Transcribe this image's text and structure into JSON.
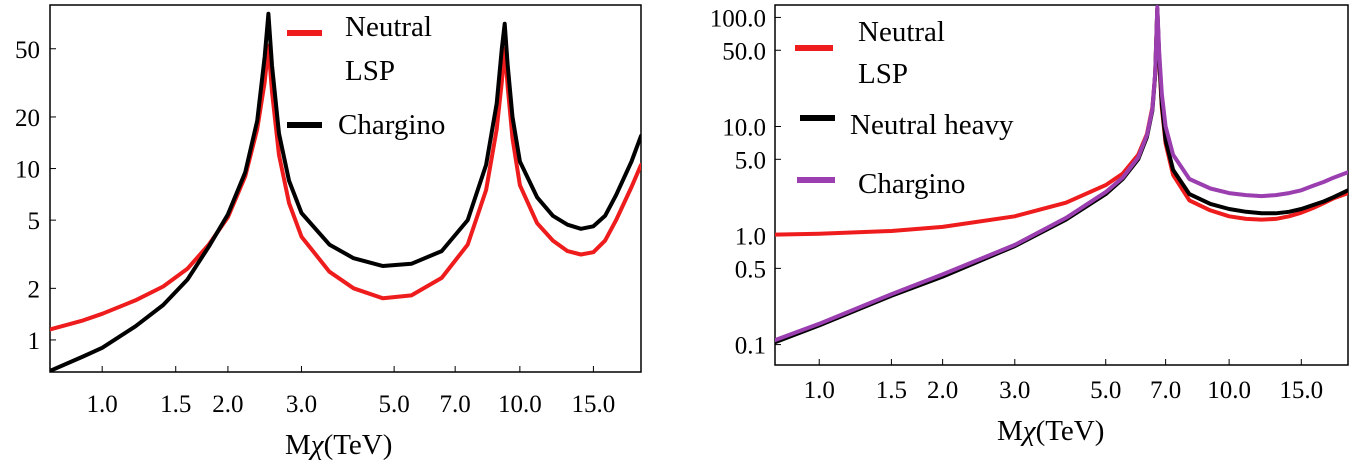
{
  "chart_data": [
    {
      "type": "line",
      "xscale": "log",
      "yscale": "log",
      "xlabel_main": "M",
      "xlabel_sym": "χ",
      "xlabel_unit": "(TeV)",
      "xlim": [
        0.75,
        19.5
      ],
      "ylim": [
        0.65,
        90
      ],
      "xticks": [
        1.0,
        1.5,
        2.0,
        3.0,
        5.0,
        7.0,
        10.0,
        15.0
      ],
      "xtick_labels": [
        "1.0",
        "1.5",
        "2.0",
        "3.0",
        "5.0",
        "7.0",
        "10.0",
        "15.0"
      ],
      "yticks": [
        1,
        2,
        5,
        10,
        20,
        50
      ],
      "ytick_labels": [
        "1",
        "2",
        "5",
        "10",
        "20",
        "50"
      ],
      "legend": [
        {
          "label": "Neutral",
          "label2": "LSP",
          "color": "#ee1c1c"
        },
        {
          "label": "Chargino",
          "label2": "",
          "color": "#000000"
        }
      ],
      "series": [
        {
          "name": "Neutral LSP",
          "color": "#ee1c1c",
          "x": [
            0.75,
            0.9,
            1.0,
            1.2,
            1.4,
            1.6,
            1.8,
            2.0,
            2.2,
            2.35,
            2.45,
            2.5,
            2.55,
            2.65,
            2.8,
            3.0,
            3.5,
            4.0,
            4.7,
            5.5,
            6.5,
            7.5,
            8.3,
            8.8,
            9.05,
            9.2,
            9.35,
            9.6,
            10.0,
            11.0,
            12.0,
            13.0,
            14.0,
            15.0,
            16.0,
            17.0,
            18.5,
            19.5
          ],
          "y": [
            1.15,
            1.3,
            1.42,
            1.7,
            2.05,
            2.6,
            3.6,
            5.2,
            9.0,
            17.0,
            32.0,
            52.0,
            28.0,
            12.0,
            6.3,
            4.0,
            2.5,
            2.0,
            1.75,
            1.82,
            2.3,
            3.6,
            7.5,
            17.0,
            32.0,
            50.0,
            30.0,
            15.0,
            8.0,
            4.8,
            3.8,
            3.3,
            3.15,
            3.25,
            3.8,
            5.0,
            7.8,
            10.5
          ]
        },
        {
          "name": "Chargino",
          "color": "#000000",
          "x": [
            0.75,
            0.9,
            1.0,
            1.2,
            1.4,
            1.6,
            1.8,
            2.0,
            2.2,
            2.35,
            2.45,
            2.5,
            2.55,
            2.65,
            2.8,
            3.0,
            3.5,
            4.0,
            4.7,
            5.5,
            6.5,
            7.5,
            8.3,
            8.8,
            9.05,
            9.2,
            9.35,
            9.6,
            10.0,
            11.0,
            12.0,
            13.0,
            14.0,
            15.0,
            16.0,
            17.0,
            18.5,
            19.5
          ],
          "y": [
            0.66,
            0.8,
            0.9,
            1.2,
            1.6,
            2.25,
            3.5,
            5.4,
            9.5,
            19.0,
            45.0,
            80.0,
            40.0,
            16.0,
            8.5,
            5.5,
            3.6,
            3.0,
            2.7,
            2.78,
            3.3,
            5.0,
            10.5,
            24.0,
            50.0,
            70.0,
            40.0,
            20.0,
            11.0,
            6.8,
            5.3,
            4.7,
            4.45,
            4.6,
            5.3,
            7.0,
            11.0,
            15.5
          ]
        }
      ]
    },
    {
      "type": "line",
      "xscale": "log",
      "yscale": "log",
      "xlabel_main": "M",
      "xlabel_sym": "χ",
      "xlabel_unit": "(TeV)",
      "xlim": [
        0.78,
        19.5
      ],
      "ylim": [
        0.065,
        130
      ],
      "xticks": [
        1.0,
        1.5,
        2.0,
        3.0,
        5.0,
        7.0,
        10.0,
        15.0
      ],
      "xtick_labels": [
        "1.0",
        "1.5",
        "2.0",
        "3.0",
        "5.0",
        "7.0",
        "10.0",
        "15.0"
      ],
      "yticks": [
        0.1,
        0.5,
        1.0,
        5.0,
        10.0,
        50.0,
        100.0
      ],
      "ytick_labels": [
        "0.1",
        "0.5",
        "1.0",
        "5.0",
        "10.0",
        "50.0",
        "100.0"
      ],
      "legend": [
        {
          "label": "Neutral",
          "label2": "LSP",
          "color": "#ee1c1c"
        },
        {
          "label": "Neutral heavy",
          "label2": "",
          "color": "#000000"
        },
        {
          "label": "Chargino",
          "label2": "",
          "color": "#9b3fb0"
        }
      ],
      "series": [
        {
          "name": "Neutral LSP",
          "color": "#ee1c1c",
          "x": [
            0.78,
            1.0,
            1.5,
            2.0,
            3.0,
            4.0,
            5.0,
            5.5,
            6.0,
            6.3,
            6.5,
            6.6,
            6.68,
            6.75,
            6.85,
            7.0,
            7.3,
            8.0,
            9.0,
            10.0,
            11.0,
            12.0,
            13.0,
            14.0,
            15.0,
            16.0,
            17.0,
            18.0,
            19.5
          ],
          "y": [
            1.02,
            1.04,
            1.1,
            1.2,
            1.5,
            2.0,
            2.9,
            3.7,
            5.5,
            8.5,
            15.0,
            30.0,
            120.0,
            40.0,
            15.0,
            7.0,
            3.6,
            2.1,
            1.7,
            1.5,
            1.42,
            1.4,
            1.42,
            1.5,
            1.62,
            1.78,
            1.98,
            2.2,
            2.45
          ]
        },
        {
          "name": "Neutral heavy",
          "color": "#000000",
          "x": [
            0.78,
            1.0,
            1.5,
            2.0,
            3.0,
            4.0,
            5.0,
            5.5,
            6.0,
            6.3,
            6.5,
            6.6,
            6.68,
            6.75,
            6.85,
            7.0,
            7.3,
            8.0,
            9.0,
            10.0,
            11.0,
            12.0,
            13.0,
            14.0,
            15.0,
            16.0,
            17.0,
            18.0,
            19.5
          ],
          "y": [
            0.105,
            0.15,
            0.28,
            0.42,
            0.8,
            1.4,
            2.4,
            3.3,
            5.0,
            8.0,
            14.0,
            30.0,
            120.0,
            42.0,
            16.0,
            7.5,
            4.0,
            2.4,
            1.95,
            1.75,
            1.65,
            1.6,
            1.6,
            1.65,
            1.75,
            1.9,
            2.05,
            2.25,
            2.6
          ]
        },
        {
          "name": "Chargino",
          "color": "#9b3fb0",
          "x": [
            0.78,
            1.0,
            1.5,
            2.0,
            3.0,
            4.0,
            5.0,
            5.5,
            6.0,
            6.3,
            6.5,
            6.6,
            6.68,
            6.75,
            6.85,
            7.0,
            7.3,
            8.0,
            9.0,
            10.0,
            11.0,
            12.0,
            13.0,
            14.0,
            15.0,
            16.0,
            17.0,
            18.0,
            19.5
          ],
          "y": [
            0.11,
            0.155,
            0.29,
            0.44,
            0.82,
            1.45,
            2.5,
            3.4,
            5.2,
            8.3,
            14.5,
            31.0,
            125.0,
            48.0,
            20.0,
            10.0,
            5.5,
            3.3,
            2.7,
            2.45,
            2.35,
            2.3,
            2.35,
            2.45,
            2.6,
            2.85,
            3.1,
            3.4,
            3.8
          ]
        }
      ]
    }
  ]
}
